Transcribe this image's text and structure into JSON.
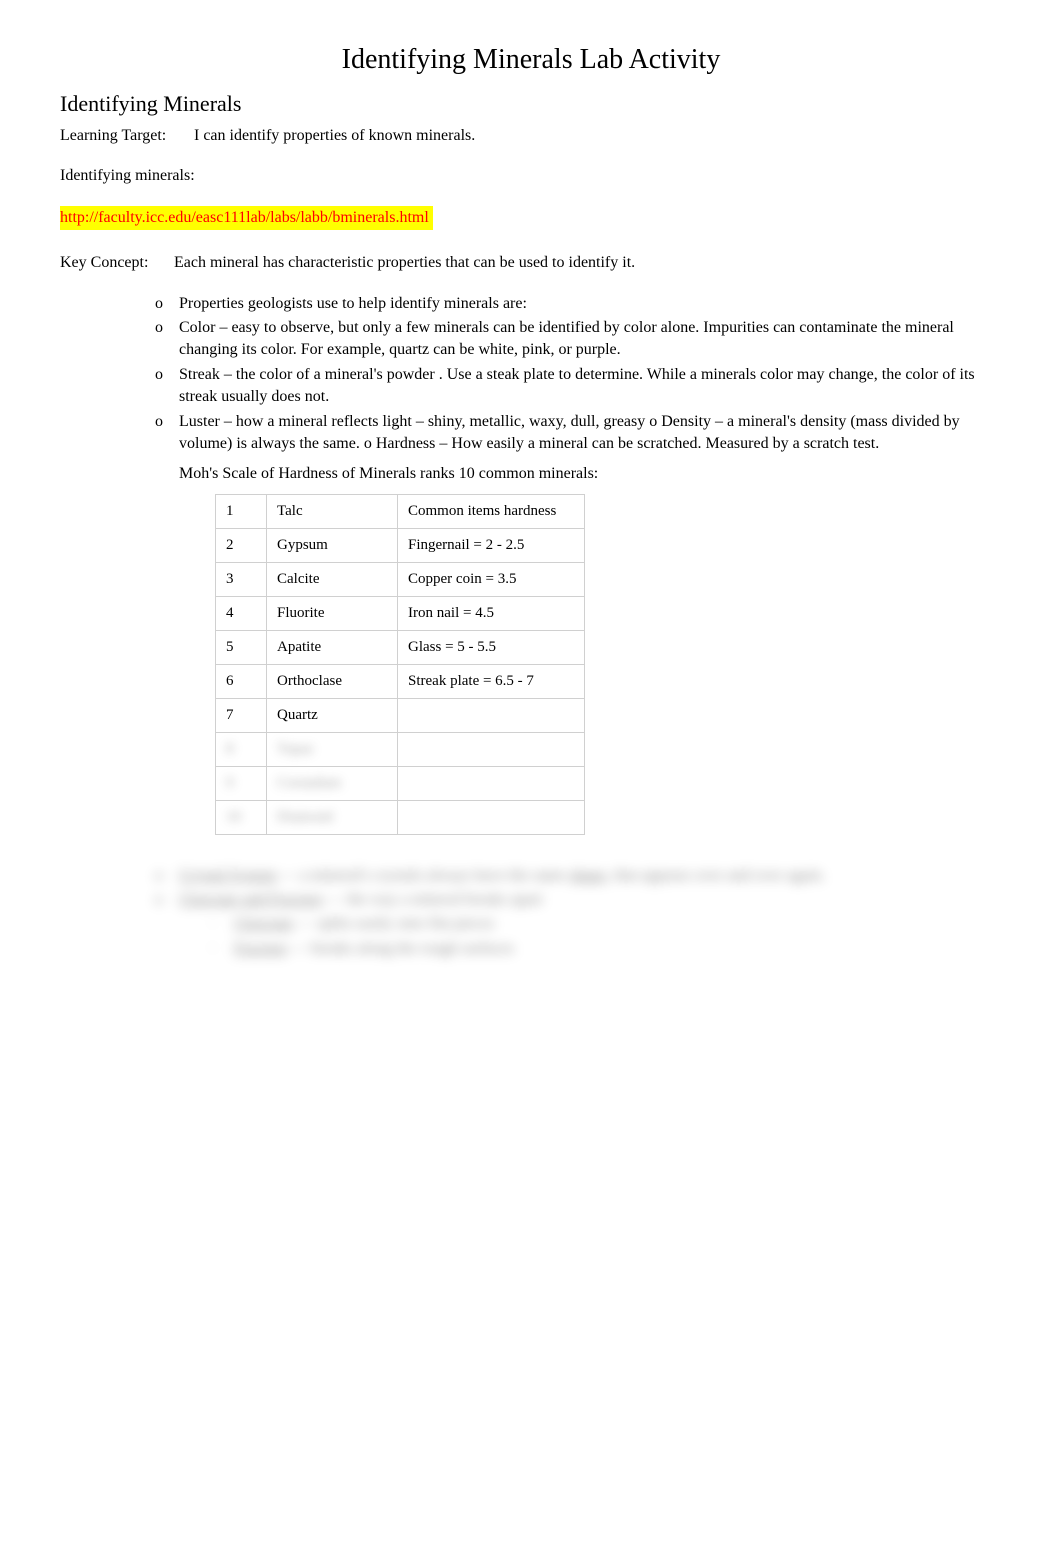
{
  "title": "Identifying Minerals Lab Activity",
  "subtitle": "Identifying Minerals",
  "learning_target_label": "Learning Target:",
  "learning_target_text": "I can identify properties of known minerals.",
  "identifying_label": "Identifying minerals:",
  "link_url": "http://faculty.icc.edu/easc111lab/labs/labb/bminerals.html",
  "key_concept_label": "Key Concept:",
  "key_concept_text": "Each mineral has characteristic properties that can be used to identify it.",
  "bullet_marker": "o",
  "sub_marker": "·",
  "bullets": {
    "b0": "Properties geologists use to help identify minerals are:",
    "b1_term": "Color",
    "b1_text1": " – easy to observe, but only a few minerals can be identified by color alone.  Impurities can contaminate the mineral changing its color.          For example, quartz can be white, pink, or purple.",
    "b2_term": "Streak",
    "b2_text1": " – the color of a mineral's    ",
    "b2_powder": "powder",
    "b2_text2": " . Use a steak plate to determine.        While a minerals color may change, the color of its streak usually does not.",
    "b3_term": "Luster",
    "b3_text1": " – how a mineral   ",
    "b3_reflects": "reflects",
    "b3_text2": "   light – shiny, metallic, waxy, dull, greasy      o    ",
    "b3_density": "Density",
    "b3_text3": "   – a mineral's density (mass divided by volume) is always the same.          o  ",
    "b3_hardness": "Hardness",
    "b3_text4": "    – How easily a mineral can be scratched. Measured by a          ",
    "b3_scratch": "scratch",
    "b3_text5": "    test."
  },
  "mohs_intro": "Moh's Scale of Hardness of Minerals ranks 10 common minerals:",
  "hardness_table": {
    "header_common": "Common items hardness",
    "rows": [
      {
        "n": "1",
        "m": "Talc",
        "c": "Common items hardness"
      },
      {
        "n": "2",
        "m": "Gypsum",
        "c": "Fingernail = 2 - 2.5"
      },
      {
        "n": "3",
        "m": "Calcite",
        "c": "Copper coin = 3.5"
      },
      {
        "n": "4",
        "m": "Fluorite",
        "c": "Iron nail = 4.5"
      },
      {
        "n": "5",
        "m": "Apatite",
        "c": "Glass = 5 - 5.5"
      },
      {
        "n": "6",
        "m": "Orthoclase",
        "c": "Streak plate = 6.5 - 7"
      },
      {
        "n": "7",
        "m": "Quartz",
        "c": ""
      },
      {
        "n": "8",
        "m": "Topaz",
        "c": ""
      },
      {
        "n": "9",
        "m": "Corundum",
        "c": ""
      },
      {
        "n": "10",
        "m": "Diamond",
        "c": ""
      }
    ]
  },
  "blurred": {
    "line1_term": "Crystal System",
    "line1_text": " — a mineral's crystals always have the same        ",
    "line1_shape": "shape",
    "line1_text2": ", that appears over and over again.",
    "line2_term": "Cleavage and Fracture",
    "line2_text": "     — the way a mineral breaks apart",
    "sub1_term": "Cleavage",
    "sub1_text": " — splits easily onto flat pieces",
    "sub2_term": "Fracture",
    "sub2_text": " — breaks along the rough surfaces"
  }
}
